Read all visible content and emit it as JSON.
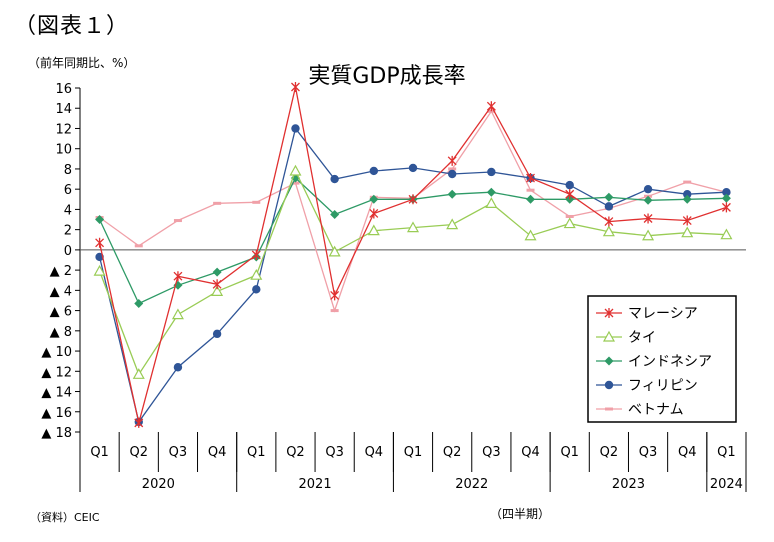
{
  "figure_label": "（図表１）",
  "unit_label": "（前年同期比、%）",
  "source_note": "（資料）CEIC",
  "x_unit_label": "（四半期）",
  "chart_data": {
    "type": "line",
    "title": "実質GDP成長率",
    "x": [
      "2020 Q1",
      "2020 Q2",
      "2020 Q3",
      "2020 Q4",
      "2021 Q1",
      "2021 Q2",
      "2021 Q3",
      "2021 Q4",
      "2022 Q1",
      "2022 Q2",
      "2022 Q3",
      "2022 Q4",
      "2023 Q1",
      "2023 Q2",
      "2023 Q3",
      "2023 Q4",
      "2024 Q1"
    ],
    "quarter_labels": [
      "Q1",
      "Q2",
      "Q3",
      "Q4",
      "Q1",
      "Q2",
      "Q3",
      "Q4",
      "Q1",
      "Q2",
      "Q3",
      "Q4",
      "Q1",
      "Q2",
      "Q3",
      "Q4",
      "Q1"
    ],
    "years": [
      {
        "label": "2020",
        "span": 4
      },
      {
        "label": "2021",
        "span": 4
      },
      {
        "label": "2022",
        "span": 4
      },
      {
        "label": "2023",
        "span": 4
      },
      {
        "label": "2024",
        "span": 1
      }
    ],
    "ylim": [
      -18,
      16
    ],
    "yticks": [
      16,
      14,
      12,
      10,
      8,
      6,
      4,
      2,
      0,
      -2,
      -4,
      -6,
      -8,
      -10,
      -12,
      -14,
      -16,
      -18
    ],
    "ytick_labels": [
      "16",
      "14",
      "12",
      "10",
      "8",
      "6",
      "4",
      "2",
      "0",
      "▲ 2",
      "▲ 4",
      "▲ 6",
      "▲ 8",
      "▲ 10",
      "▲ 12",
      "▲ 14",
      "▲ 16",
      "▲ 18"
    ],
    "grid": false,
    "legend_position": "bottom-right",
    "series": [
      {
        "name": "マレーシア",
        "color": "#e03030",
        "marker": "star",
        "values": [
          0.7,
          -17.1,
          -2.6,
          -3.4,
          -0.5,
          16.1,
          -4.5,
          3.6,
          5.0,
          8.8,
          14.2,
          7.1,
          5.5,
          2.8,
          3.1,
          2.9,
          4.2
        ]
      },
      {
        "name": "タイ",
        "color": "#99cc55",
        "marker": "triangle",
        "values": [
          -2.1,
          -12.3,
          -6.4,
          -4.1,
          -2.5,
          7.8,
          -0.2,
          1.9,
          2.2,
          2.5,
          4.6,
          1.4,
          2.6,
          1.8,
          1.4,
          1.7,
          1.5
        ]
      },
      {
        "name": "インドネシア",
        "color": "#2e9a66",
        "marker": "diamond",
        "values": [
          3.0,
          -5.3,
          -3.5,
          -2.2,
          -0.7,
          7.1,
          3.5,
          5.0,
          5.0,
          5.5,
          5.7,
          5.0,
          5.0,
          5.2,
          4.9,
          5.0,
          5.1
        ]
      },
      {
        "name": "フィリピン",
        "color": "#2f5597",
        "marker": "circle",
        "values": [
          -0.7,
          -17.0,
          -11.6,
          -8.3,
          -3.9,
          12.0,
          7.0,
          7.8,
          8.1,
          7.5,
          7.7,
          7.1,
          6.4,
          4.3,
          6.0,
          5.5,
          5.7
        ]
      },
      {
        "name": "ベトナム",
        "color": "#f0a0a8",
        "marker": "dash",
        "values": [
          3.2,
          0.4,
          2.9,
          4.6,
          4.7,
          6.6,
          -6.0,
          5.2,
          5.1,
          8.0,
          13.7,
          5.9,
          3.3,
          4.1,
          5.3,
          6.7,
          5.7
        ]
      }
    ]
  }
}
